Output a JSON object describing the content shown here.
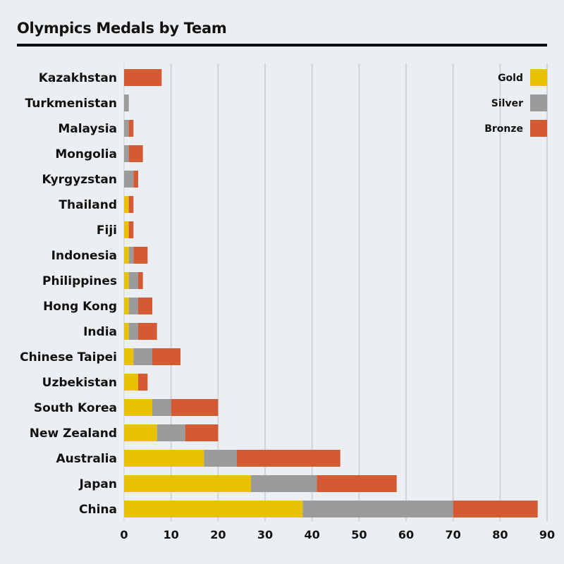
{
  "chart_data": {
    "type": "bar",
    "orientation": "horizontal",
    "stacked": true,
    "title": "Olympics Medals by Team",
    "categories": [
      "Kazakhstan",
      "Turkmenistan",
      "Malaysia",
      "Mongolia",
      "Kyrgyzstan",
      "Thailand",
      "Fiji",
      "Indonesia",
      "Philippines",
      "Hong Kong",
      "India",
      "Chinese Taipei",
      "Uzbekistan",
      "South Korea",
      "New Zealand",
      "Australia",
      "Japan",
      "China"
    ],
    "series": [
      {
        "name": "Gold",
        "color": "#e8c200",
        "values": [
          0,
          0,
          0,
          0,
          0,
          1,
          1,
          1,
          1,
          1,
          1,
          2,
          3,
          6,
          7,
          17,
          27,
          38
        ]
      },
      {
        "name": "Silver",
        "color": "#9b9b9b",
        "values": [
          0,
          1,
          1,
          1,
          2,
          0,
          0,
          1,
          2,
          2,
          2,
          4,
          0,
          4,
          6,
          7,
          14,
          32
        ]
      },
      {
        "name": "Bronze",
        "color": "#d35a34",
        "values": [
          8,
          0,
          1,
          3,
          1,
          1,
          1,
          3,
          1,
          3,
          4,
          6,
          2,
          10,
          7,
          22,
          17,
          18
        ]
      }
    ],
    "xlim": [
      0,
      90
    ],
    "xticks": [
      0,
      10,
      20,
      30,
      40,
      50,
      60,
      70,
      80,
      90
    ],
    "grid": true,
    "legend": "top-right"
  }
}
